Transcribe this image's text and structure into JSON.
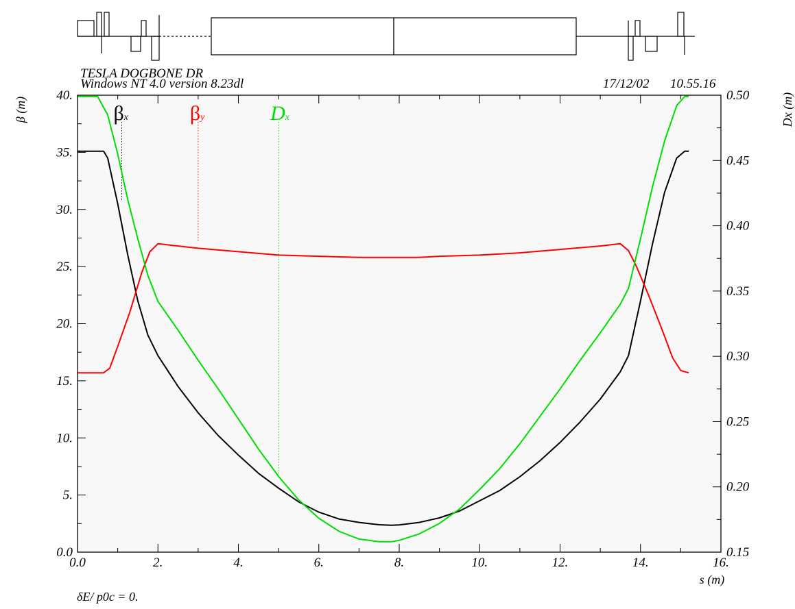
{
  "header": {
    "title_line1": "TESLA DOGBONE DR",
    "title_line2": "Windows NT 4.0 version 8.23dl",
    "date": "17/12/02",
    "time": "10.55.16"
  },
  "footer": {
    "delta_label": "δE/ p0c  =  0."
  },
  "colors": {
    "beta_x": "#000000",
    "beta_y": "#ff0000",
    "dispersion": "#00dd00",
    "axes": "#000000",
    "plot_bg": "#f8f8f8"
  },
  "chart_data": {
    "type": "line",
    "xlabel": "s (m)",
    "ylabel": "β (m)",
    "y2label": "Dx (m)",
    "xlim": [
      0,
      16
    ],
    "ylim": [
      0,
      40
    ],
    "y2lim": [
      0.15,
      0.5
    ],
    "x_ticks": [
      "0.0",
      "2.",
      "4.",
      "6.",
      "8.",
      "10.",
      "12.",
      "14.",
      "16."
    ],
    "y_ticks": [
      "0.0",
      "5.",
      "10.",
      "15.",
      "20.",
      "25.",
      "30.",
      "35.",
      "40."
    ],
    "y2_ticks": [
      "0.15",
      "0.20",
      "0.25",
      "0.30",
      "0.35",
      "0.40",
      "0.45",
      "0.50"
    ],
    "legend": [
      {
        "symbol": "β",
        "sub": "x",
        "marker_s": 1.1
      },
      {
        "symbol": "β",
        "sub": "y",
        "marker_s": 3.0
      },
      {
        "symbol": "D",
        "sub": "x",
        "marker_s": 5.0
      }
    ],
    "series": [
      {
        "name": "βx",
        "axis": "left",
        "x": [
          0,
          0.65,
          0.75,
          1.0,
          1.25,
          1.5,
          1.75,
          2.0,
          2.5,
          3.0,
          3.5,
          4.0,
          4.5,
          5.0,
          5.5,
          6.0,
          6.5,
          7.0,
          7.5,
          7.8,
          8.0,
          8.5,
          9.0,
          9.5,
          10.0,
          10.5,
          11.0,
          11.5,
          12.0,
          12.5,
          13.0,
          13.5,
          13.7,
          14.0,
          14.3,
          14.6,
          14.9,
          15.1,
          15.2
        ],
        "values": [
          35.1,
          35.1,
          34.5,
          30.5,
          26.0,
          22.0,
          19.0,
          17.2,
          14.5,
          12.2,
          10.2,
          8.5,
          6.9,
          5.6,
          4.4,
          3.5,
          2.9,
          2.6,
          2.4,
          2.35,
          2.38,
          2.6,
          3.0,
          3.6,
          4.5,
          5.4,
          6.6,
          8.0,
          9.6,
          11.4,
          13.4,
          15.8,
          17.2,
          22.0,
          27.0,
          31.5,
          34.5,
          35.1,
          35.1
        ]
      },
      {
        "name": "βy",
        "axis": "left",
        "x": [
          0,
          0.65,
          0.8,
          1.0,
          1.3,
          1.6,
          1.8,
          2.0,
          2.5,
          3.0,
          4.0,
          5.0,
          6.0,
          7.0,
          7.8,
          8.5,
          9.0,
          10.0,
          11.0,
          12.0,
          13.0,
          13.5,
          13.7,
          13.9,
          14.2,
          14.5,
          14.8,
          15.0,
          15.2
        ],
        "values": [
          15.7,
          15.7,
          16.1,
          18.0,
          21.0,
          24.5,
          26.3,
          27.0,
          26.8,
          26.6,
          26.3,
          26.0,
          25.9,
          25.8,
          25.8,
          25.8,
          25.9,
          26.0,
          26.2,
          26.5,
          26.8,
          27.0,
          26.4,
          25.0,
          22.5,
          19.8,
          17.0,
          15.9,
          15.7
        ]
      },
      {
        "name": "Dx",
        "axis": "right",
        "x": [
          0,
          0.5,
          0.75,
          1.0,
          1.25,
          1.5,
          1.75,
          2.0,
          2.5,
          3.0,
          3.5,
          4.0,
          4.5,
          5.0,
          5.5,
          6.0,
          6.5,
          7.0,
          7.5,
          7.8,
          8.0,
          8.5,
          9.0,
          9.5,
          10.0,
          10.5,
          11.0,
          11.5,
          12.0,
          12.5,
          13.0,
          13.5,
          13.7,
          14.0,
          14.3,
          14.6,
          14.9,
          15.1,
          15.2
        ],
        "values": [
          0.499,
          0.499,
          0.485,
          0.455,
          0.42,
          0.39,
          0.362,
          0.342,
          0.32,
          0.297,
          0.275,
          0.252,
          0.229,
          0.208,
          0.19,
          0.176,
          0.166,
          0.16,
          0.158,
          0.158,
          0.159,
          0.164,
          0.172,
          0.183,
          0.198,
          0.214,
          0.233,
          0.254,
          0.275,
          0.297,
          0.318,
          0.34,
          0.352,
          0.39,
          0.43,
          0.465,
          0.492,
          0.499,
          0.499
        ]
      }
    ]
  }
}
